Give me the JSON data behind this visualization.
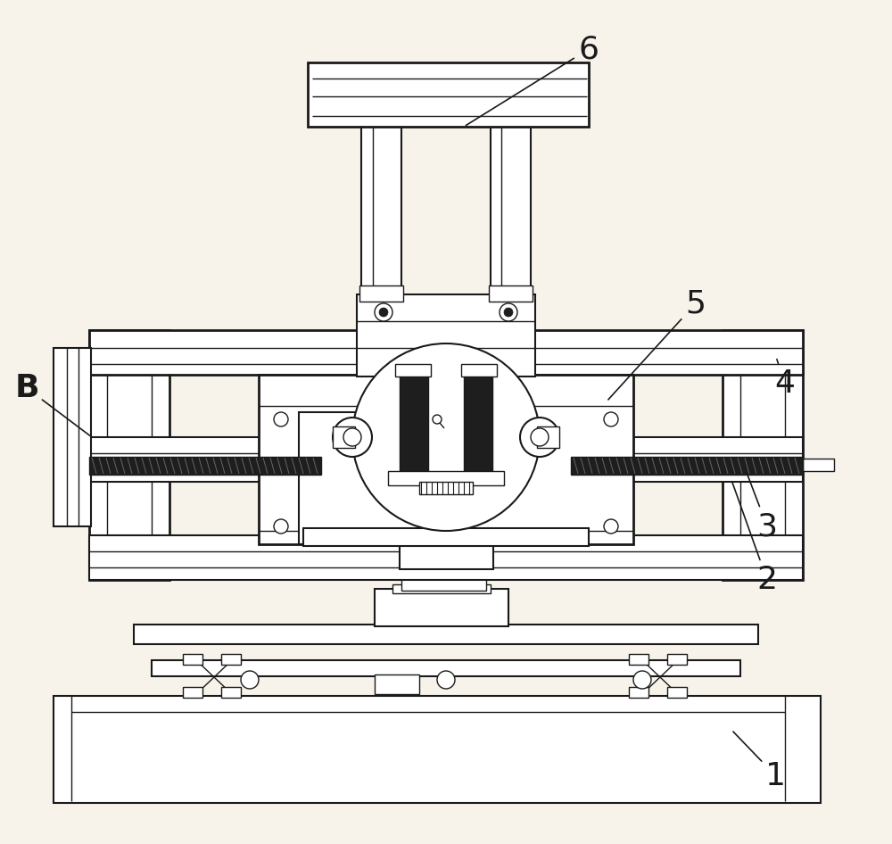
{
  "bg_color": "#f7f3eb",
  "line_color": "#1a1a1a",
  "dark_fill": "#1e1e1e",
  "white_fill": "#ffffff",
  "light_gray": "#e8e8e8",
  "label_fontsize": 26,
  "figsize": [
    10.0,
    9.46
  ]
}
